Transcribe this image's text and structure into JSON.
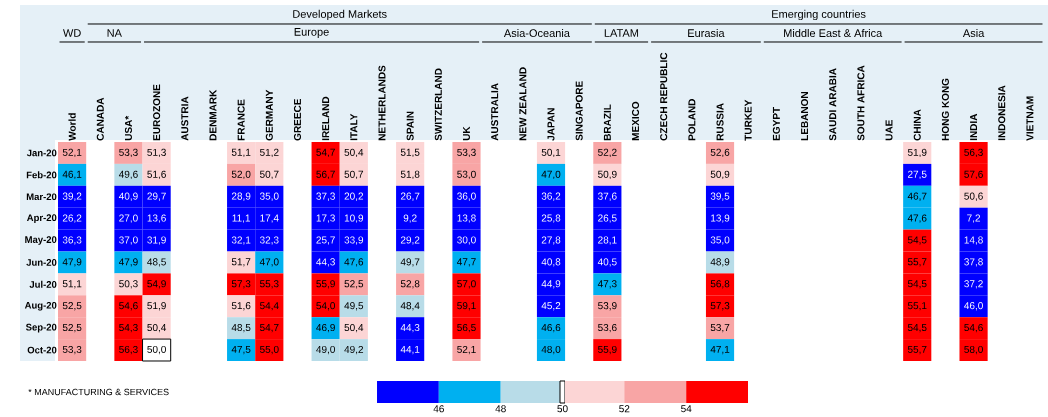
{
  "chart_data": {
    "type": "heatmap",
    "categories": [
      "World",
      "CANADA",
      "USA*",
      "EUROZONE",
      "AUSTRIA",
      "DENMARK",
      "FRANCE",
      "GERMANY",
      "GREECE",
      "IRELAND",
      "ITALY",
      "NETHERLANDS",
      "SPAIN",
      "SWITZERLAND",
      "UK",
      "AUSTRALIA",
      "NEW ZEALAND",
      "JAPAN",
      "SINGAPORE",
      "BRAZIL",
      "MEXICO",
      "CZECH REPUBLIC",
      "POLAND",
      "RUSSIA",
      "TURKEY",
      "EGYPT",
      "LEBANON",
      "SAUDI ARABIA",
      "SOUTH AFRICA",
      "UAE",
      "CHINA",
      "HONG KONG",
      "INDIA",
      "INDONESIA",
      "VIETNAM"
    ],
    "y_categories": [
      "Jan-20",
      "Feb-20",
      "Mar-20",
      "Apr-20",
      "May-20",
      "Jun-20",
      "Jul-20",
      "Aug-20",
      "Sep-20",
      "Oct-20"
    ],
    "cells": [
      [
        52.1,
        null,
        53.3,
        51.3,
        null,
        null,
        51.1,
        51.2,
        null,
        54.7,
        50.4,
        null,
        51.5,
        null,
        53.3,
        null,
        null,
        50.1,
        null,
        52.2,
        null,
        null,
        null,
        52.6,
        null,
        null,
        null,
        null,
        null,
        null,
        51.9,
        null,
        56.3,
        null,
        null
      ],
      [
        46.1,
        null,
        49.6,
        51.6,
        null,
        null,
        52.0,
        50.7,
        null,
        56.7,
        50.7,
        null,
        51.8,
        null,
        53.0,
        null,
        null,
        47.0,
        null,
        50.9,
        null,
        null,
        null,
        50.9,
        null,
        null,
        null,
        null,
        null,
        null,
        27.5,
        null,
        57.6,
        null,
        null
      ],
      [
        39.2,
        null,
        40.9,
        29.7,
        null,
        null,
        28.9,
        35.0,
        null,
        37.3,
        20.2,
        null,
        26.7,
        null,
        36.0,
        null,
        null,
        36.2,
        null,
        37.6,
        null,
        null,
        null,
        39.5,
        null,
        null,
        null,
        null,
        null,
        null,
        46.7,
        null,
        50.6,
        null,
        null
      ],
      [
        26.2,
        null,
        27.0,
        13.6,
        null,
        null,
        11.1,
        17.4,
        null,
        17.3,
        10.9,
        null,
        9.2,
        null,
        13.8,
        null,
        null,
        25.8,
        null,
        26.5,
        null,
        null,
        null,
        13.9,
        null,
        null,
        null,
        null,
        null,
        null,
        47.6,
        null,
        7.2,
        null,
        null
      ],
      [
        36.3,
        null,
        37.0,
        31.9,
        null,
        null,
        32.1,
        32.3,
        null,
        25.7,
        33.9,
        null,
        29.2,
        null,
        30.0,
        null,
        null,
        27.8,
        null,
        28.1,
        null,
        null,
        null,
        35.0,
        null,
        null,
        null,
        null,
        null,
        null,
        54.5,
        null,
        14.8,
        null,
        null
      ],
      [
        47.9,
        null,
        47.9,
        48.5,
        null,
        null,
        51.7,
        47.0,
        null,
        44.3,
        47.6,
        null,
        49.7,
        null,
        47.7,
        null,
        null,
        40.8,
        null,
        40.5,
        null,
        null,
        null,
        48.9,
        null,
        null,
        null,
        null,
        null,
        null,
        55.7,
        null,
        37.8,
        null,
        null
      ],
      [
        51.1,
        null,
        50.3,
        54.9,
        null,
        null,
        57.3,
        55.3,
        null,
        55.9,
        52.5,
        null,
        52.8,
        null,
        57.0,
        null,
        null,
        44.9,
        null,
        47.3,
        null,
        null,
        null,
        56.8,
        null,
        null,
        null,
        null,
        null,
        null,
        54.5,
        null,
        37.2,
        null,
        null
      ],
      [
        52.5,
        null,
        54.6,
        51.9,
        null,
        null,
        51.6,
        54.4,
        null,
        54.0,
        49.5,
        null,
        48.4,
        null,
        59.1,
        null,
        null,
        45.2,
        null,
        53.9,
        null,
        null,
        null,
        57.3,
        null,
        null,
        null,
        null,
        null,
        null,
        55.1,
        null,
        46.0,
        null,
        null
      ],
      [
        52.5,
        null,
        54.3,
        50.4,
        null,
        null,
        48.5,
        54.7,
        null,
        46.9,
        50.4,
        null,
        44.3,
        null,
        56.5,
        null,
        null,
        46.6,
        null,
        53.6,
        null,
        null,
        null,
        53.7,
        null,
        null,
        null,
        null,
        null,
        null,
        54.5,
        null,
        54.6,
        null,
        null
      ],
      [
        53.3,
        null,
        56.3,
        50.0,
        null,
        null,
        47.5,
        55.0,
        null,
        49.0,
        49.2,
        null,
        44.1,
        null,
        52.1,
        null,
        null,
        48.0,
        null,
        55.9,
        null,
        null,
        null,
        47.1,
        null,
        null,
        null,
        null,
        null,
        null,
        55.7,
        null,
        58.0,
        null,
        null
      ]
    ],
    "cell_labels": [
      [
        "52,1",
        null,
        "53,3",
        "51,3",
        null,
        null,
        "51,1",
        "51,2",
        null,
        "54,7",
        "50,4",
        null,
        "51,5",
        null,
        "53,3",
        null,
        null,
        "50,1",
        null,
        "52,2",
        null,
        null,
        null,
        "52,6",
        null,
        null,
        null,
        null,
        null,
        null,
        "51,9",
        null,
        "56,3",
        null,
        null
      ],
      [
        "46,1",
        null,
        "49,6",
        "51,6",
        null,
        null,
        "52,0",
        "50,7",
        null,
        "56,7",
        "50,7",
        null,
        "51,8",
        null,
        "53,0",
        null,
        null,
        "47,0",
        null,
        "50,9",
        null,
        null,
        null,
        "50,9",
        null,
        null,
        null,
        null,
        null,
        null,
        "27,5",
        null,
        "57,6",
        null,
        null
      ],
      [
        "39,2",
        null,
        "40,9",
        "29,7",
        null,
        null,
        "28,9",
        "35,0",
        null,
        "37,3",
        "20,2",
        null,
        "26,7",
        null,
        "36,0",
        null,
        null,
        "36,2",
        null,
        "37,6",
        null,
        null,
        null,
        "39,5",
        null,
        null,
        null,
        null,
        null,
        null,
        "46,7",
        null,
        "50,6",
        null,
        null
      ],
      [
        "26,2",
        null,
        "27,0",
        "13,6",
        null,
        null,
        "11,1",
        "17,4",
        null,
        "17,3",
        "10,9",
        null,
        "9,2",
        null,
        "13,8",
        null,
        null,
        "25,8",
        null,
        "26,5",
        null,
        null,
        null,
        "13,9",
        null,
        null,
        null,
        null,
        null,
        null,
        "47,6",
        null,
        "7,2",
        null,
        null
      ],
      [
        "36,3",
        null,
        "37,0",
        "31,9",
        null,
        null,
        "32,1",
        "32,3",
        null,
        "25,7",
        "33,9",
        null,
        "29,2",
        null,
        "30,0",
        null,
        null,
        "27,8",
        null,
        "28,1",
        null,
        null,
        null,
        "35,0",
        null,
        null,
        null,
        null,
        null,
        null,
        "54,5",
        null,
        "14,8",
        null,
        null
      ],
      [
        "47,9",
        null,
        "47,9",
        "48,5",
        null,
        null,
        "51,7",
        "47,0",
        null,
        "44,3",
        "47,6",
        null,
        "49,7",
        null,
        "47,7",
        null,
        null,
        "40,8",
        null,
        "40,5",
        null,
        null,
        null,
        "48,9",
        null,
        null,
        null,
        null,
        null,
        null,
        "55,7",
        null,
        "37,8",
        null,
        null
      ],
      [
        "51,1",
        null,
        "50,3",
        "54,9",
        null,
        null,
        "57,3",
        "55,3",
        null,
        "55,9",
        "52,5",
        null,
        "52,8",
        null,
        "57,0",
        null,
        null,
        "44,9",
        null,
        "47,3",
        null,
        null,
        null,
        "56,8",
        null,
        null,
        null,
        null,
        null,
        null,
        "54,5",
        null,
        "37,2",
        null,
        null
      ],
      [
        "52,5",
        null,
        "54,6",
        "51,9",
        null,
        null,
        "51,6",
        "54,4",
        null,
        "54,0",
        "49,5",
        null,
        "48,4",
        null,
        "59,1",
        null,
        null,
        "45,2",
        null,
        "53,9",
        null,
        null,
        null,
        "57,3",
        null,
        null,
        null,
        null,
        null,
        null,
        "55,1",
        null,
        "46,0",
        null,
        null
      ],
      [
        "52,5",
        null,
        "54,3",
        "50,4",
        null,
        null,
        "48,5",
        "54,7",
        null,
        "46,9",
        "50,4",
        null,
        "44,3",
        null,
        "56,5",
        null,
        null,
        "46,6",
        null,
        "53,6",
        null,
        null,
        null,
        "53,7",
        null,
        null,
        null,
        null,
        null,
        null,
        "54,5",
        null,
        "54,6",
        null,
        null
      ],
      [
        "53,3",
        null,
        "56,3",
        "50,0",
        null,
        null,
        "47,5",
        "55,0",
        null,
        "49,0",
        "49,2",
        null,
        "44,1",
        null,
        "52,1",
        null,
        null,
        "48,0",
        null,
        "55,9",
        null,
        null,
        null,
        "47,1",
        null,
        null,
        null,
        null,
        null,
        null,
        "55,7",
        null,
        "58,0",
        null,
        null
      ]
    ],
    "clim": [
      44,
      56
    ],
    "cticks": [
      46,
      48,
      50,
      52,
      54
    ],
    "annotations": [
      "Developed Markets",
      "Emerging countries",
      "WD",
      "NA",
      "Europe",
      "Asia-Oceania",
      "LATAM",
      "Eurasia",
      "Middle East & Africa",
      "Asia",
      "* MANUFACTURING & SERVICES"
    ]
  }
}
